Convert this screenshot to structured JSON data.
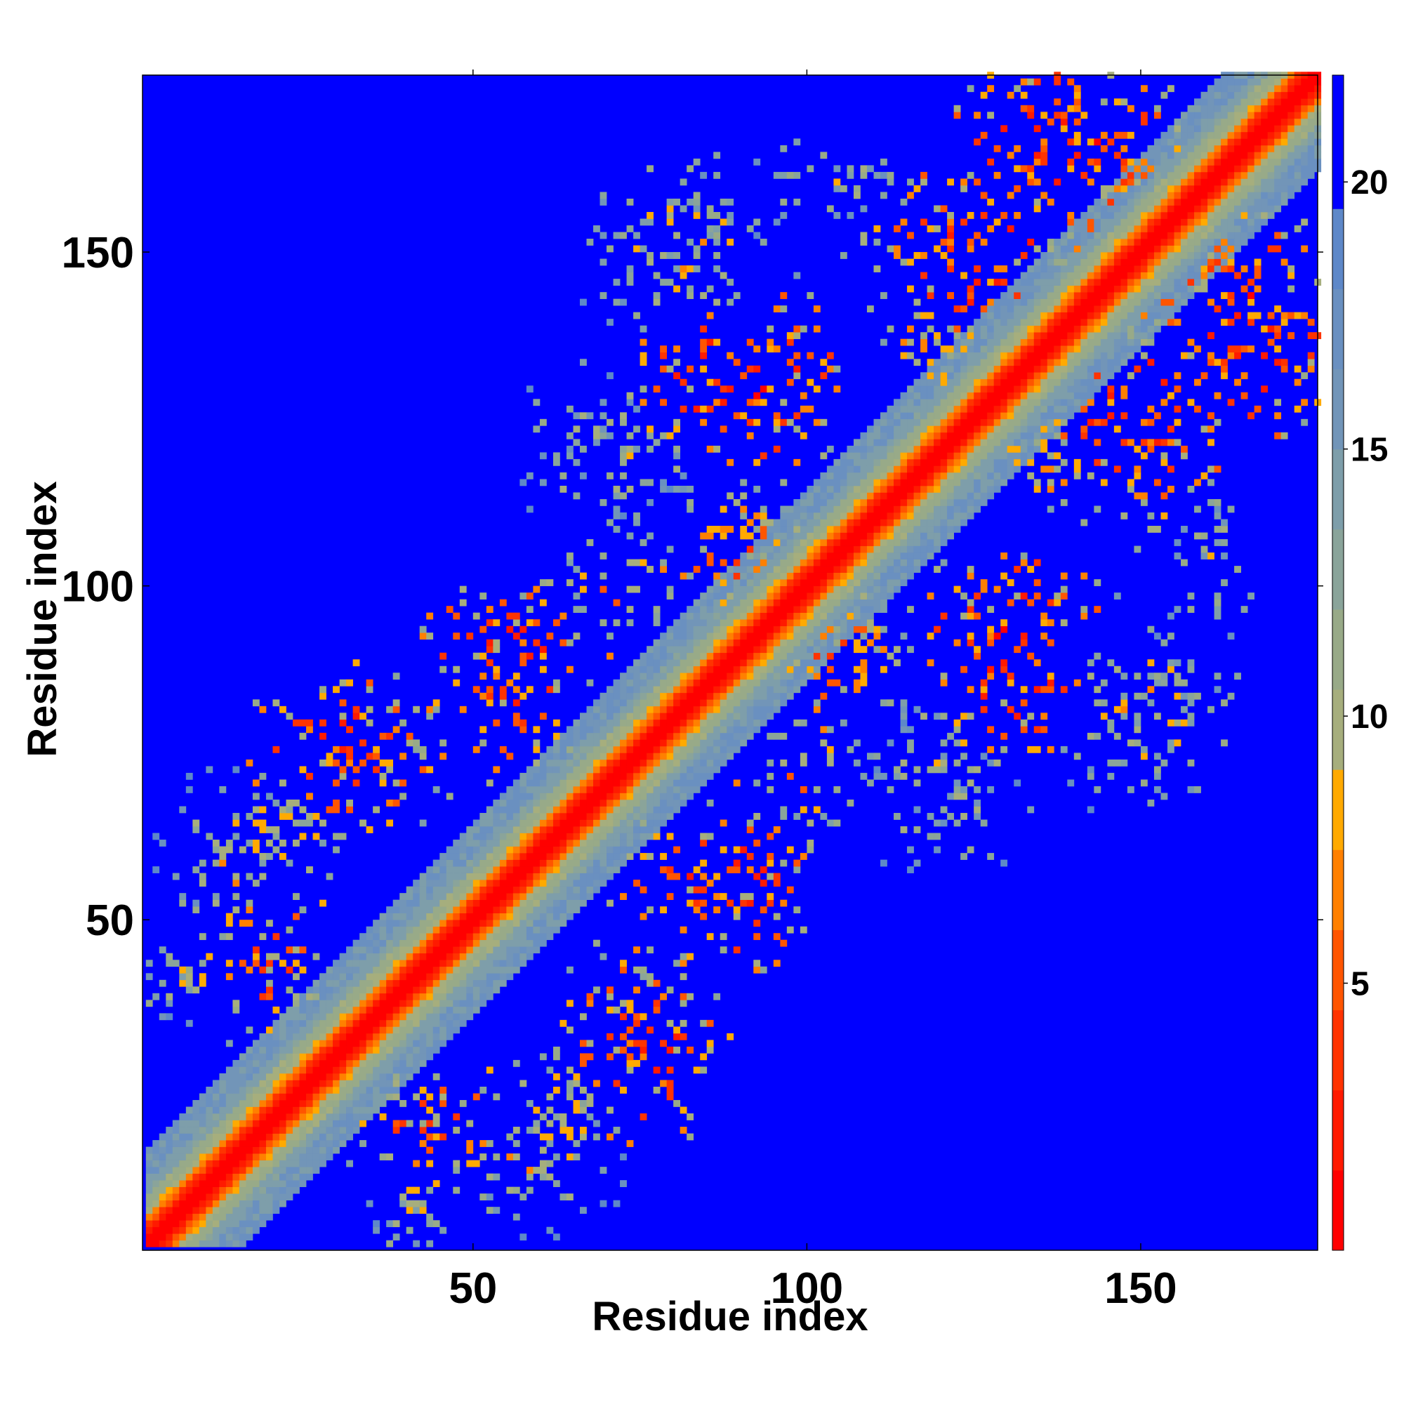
{
  "chart_data": {
    "type": "heatmap",
    "title": "",
    "xlabel": "Residue index",
    "ylabel": "Residue index",
    "n_residues": 176,
    "xlim": [
      1,
      176
    ],
    "ylim": [
      1,
      176
    ],
    "x_ticks": [
      50,
      100,
      150
    ],
    "y_ticks": [
      50,
      100,
      150
    ],
    "colorbar": {
      "ticks": [
        5,
        10,
        15,
        20
      ],
      "range": [
        0,
        22
      ],
      "levels": [
        {
          "upper": 1.5,
          "color": "#ff0000"
        },
        {
          "upper": 3,
          "color": "#ff1a00"
        },
        {
          "upper": 4.5,
          "color": "#ff3300"
        },
        {
          "upper": 6,
          "color": "#ff5500"
        },
        {
          "upper": 7.5,
          "color": "#ff8000"
        },
        {
          "upper": 9,
          "color": "#ffaa00"
        },
        {
          "upper": 10.5,
          "color": "#a6ae7d"
        },
        {
          "upper": 12,
          "color": "#98aa88"
        },
        {
          "upper": 13.5,
          "color": "#8aa49a"
        },
        {
          "upper": 15,
          "color": "#7e9eaa"
        },
        {
          "upper": 16.5,
          "color": "#7295b8"
        },
        {
          "upper": 18,
          "color": "#6a90c0"
        },
        {
          "upper": 19.5,
          "color": "#5e88c8"
        },
        {
          "upper": 22,
          "color": "#0000ff"
        }
      ]
    },
    "structure": {
      "diagonal_band": [
        {
          "max_offset": 1,
          "value": 0.8
        },
        {
          "max_offset": 2,
          "value": 2.8
        },
        {
          "max_offset": 3,
          "value": 5.2
        },
        {
          "max_offset": 4,
          "value": 7.5
        },
        {
          "max_offset": 5,
          "value": 9.8
        },
        {
          "max_offset": 7,
          "value": 11.5
        },
        {
          "max_offset": 9,
          "value": 14.5
        }
      ],
      "contact_blobs": [
        {
          "x": 75,
          "y": 30,
          "rx": 14,
          "ry": 12,
          "core": 9.5
        },
        {
          "x": 62,
          "y": 18,
          "rx": 16,
          "ry": 8,
          "core": 14
        },
        {
          "x": 40,
          "y": 8,
          "rx": 14,
          "ry": 6,
          "core": 15
        },
        {
          "x": 85,
          "y": 55,
          "rx": 10,
          "ry": 14,
          "core": 10
        },
        {
          "x": 100,
          "y": 72,
          "rx": 10,
          "ry": 8,
          "core": 12
        },
        {
          "x": 130,
          "y": 90,
          "rx": 16,
          "ry": 14,
          "core": 9
        },
        {
          "x": 105,
          "y": 88,
          "rx": 10,
          "ry": 10,
          "core": 11
        },
        {
          "x": 165,
          "y": 135,
          "rx": 14,
          "ry": 14,
          "core": 8.5
        },
        {
          "x": 150,
          "y": 118,
          "rx": 12,
          "ry": 10,
          "core": 11
        },
        {
          "x": 160,
          "y": 105,
          "rx": 16,
          "ry": 6,
          "core": 16
        },
        {
          "x": 125,
          "y": 150,
          "rx": 14,
          "ry": 14,
          "core": 9
        },
        {
          "x": 145,
          "y": 165,
          "rx": 12,
          "ry": 10,
          "core": 9
        },
        {
          "x": 90,
          "y": 130,
          "rx": 12,
          "ry": 16,
          "core": 10
        },
        {
          "x": 80,
          "y": 150,
          "rx": 14,
          "ry": 14,
          "core": 15
        },
        {
          "x": 55,
          "y": 90,
          "rx": 14,
          "ry": 10,
          "core": 9.5
        },
        {
          "x": 35,
          "y": 75,
          "rx": 12,
          "ry": 12,
          "core": 11
        },
        {
          "x": 18,
          "y": 45,
          "rx": 10,
          "ry": 14,
          "core": 11
        },
        {
          "x": 12,
          "y": 60,
          "rx": 8,
          "ry": 12,
          "core": 15
        },
        {
          "x": 70,
          "y": 120,
          "rx": 14,
          "ry": 12,
          "core": 16
        },
        {
          "x": 135,
          "y": 120,
          "rx": 8,
          "ry": 8,
          "core": 12
        }
      ],
      "seed": 1729
    }
  }
}
